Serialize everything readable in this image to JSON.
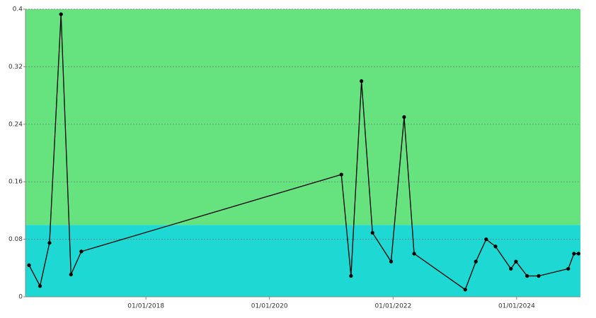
{
  "chart_data": {
    "type": "line",
    "x": [
      "2016-02-10",
      "2016-04-15",
      "2016-06-10",
      "2016-08-17",
      "2016-10-15",
      "2016-12-15",
      "2021-03-01",
      "2021-04-27",
      "2021-06-28",
      "2021-09-01",
      "2021-12-20",
      "2022-03-07",
      "2022-05-05",
      "2023-03-03",
      "2023-05-05",
      "2023-07-05",
      "2023-08-29",
      "2023-11-28",
      "2023-12-28",
      "2024-03-03",
      "2024-05-10",
      "2024-11-01",
      "2024-12-05",
      "2025-01-01"
    ],
    "values": [
      0.044,
      0.015,
      0.075,
      0.393,
      0.031,
      0.063,
      0.17,
      0.029,
      0.3,
      0.089,
      0.049,
      0.25,
      0.06,
      0.01,
      0.049,
      0.08,
      0.07,
      0.039,
      0.049,
      0.029,
      0.029,
      0.039,
      0.06,
      0.06
    ],
    "color": "#000000",
    "xlim": [
      "2016-01-20",
      "2025-01-12"
    ],
    "xticks": [
      {
        "value": "2018-01-01",
        "label": "01/01/2018"
      },
      {
        "value": "2020-01-01",
        "label": "01/01/2020"
      },
      {
        "value": "2022-01-01",
        "label": "01/01/2022"
      },
      {
        "value": "2024-01-01",
        "label": "01/01/2024"
      }
    ],
    "ylim": [
      0,
      0.4
    ],
    "yticks": [
      0,
      0.08,
      0.16,
      0.24,
      0.32,
      0.4
    ],
    "grid": true,
    "bands": [
      {
        "from": 0,
        "to": 0.1,
        "color": "#1dd8d3"
      },
      {
        "from": 0.1,
        "to": 0.4,
        "color": "#66e27f"
      }
    ]
  }
}
